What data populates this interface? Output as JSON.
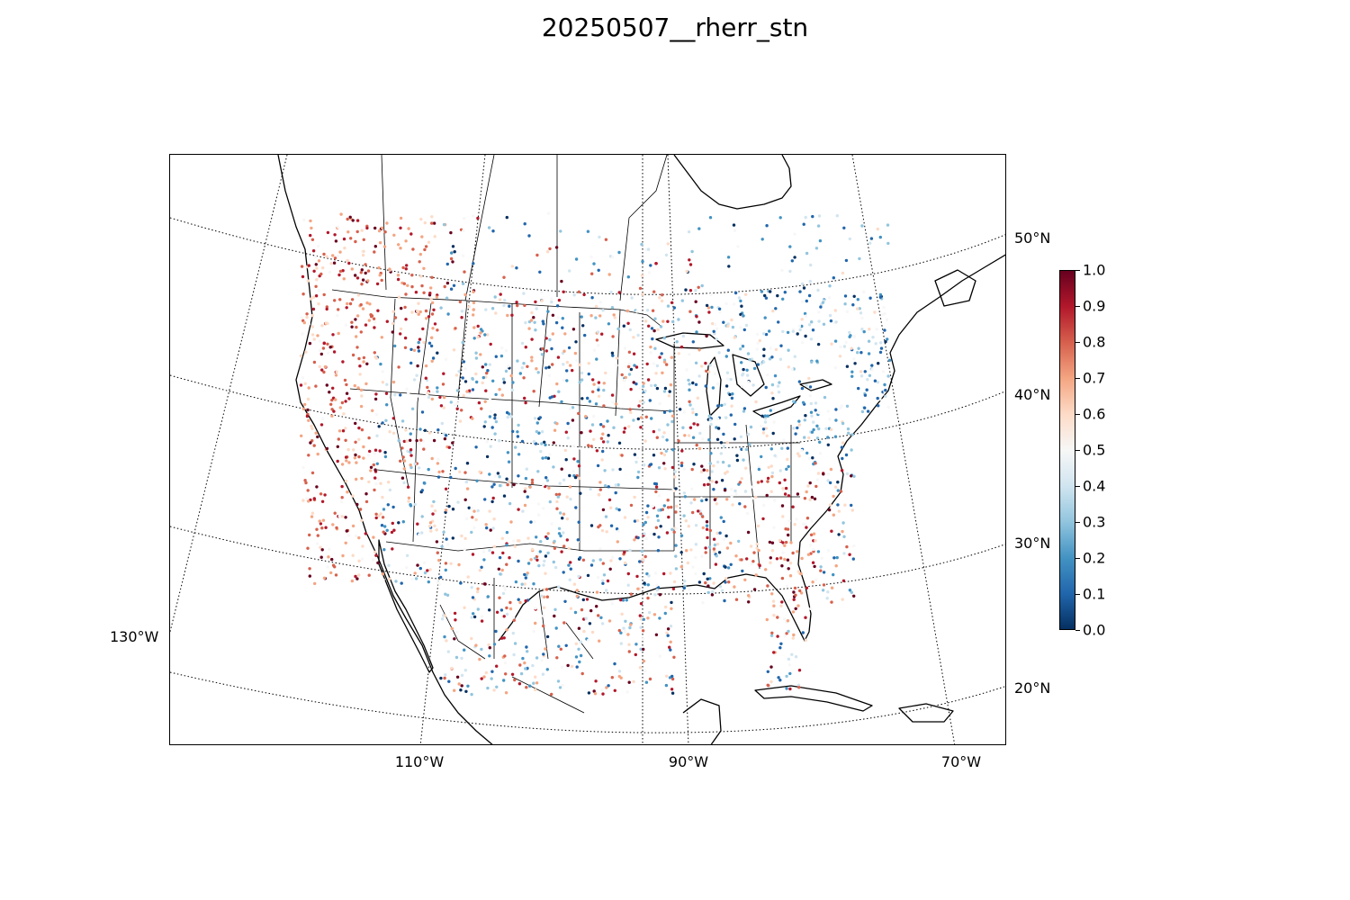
{
  "title": "20250507__rherr_stn",
  "map": {
    "projection": "lambert-conformal",
    "lat_labels": [
      "50°N",
      "40°N",
      "30°N",
      "20°N"
    ],
    "lon_labels": [
      "130°W",
      "110°W",
      "90°W",
      "70°W"
    ],
    "gridline_style": "dotted",
    "coastline_color": "#000000"
  },
  "colorbar": {
    "colormap": "RdBu_r",
    "range": [
      0.0,
      1.0
    ],
    "ticks": [
      "1.0",
      "0.9",
      "0.8",
      "0.7",
      "0.6",
      "0.5",
      "0.4",
      "0.3",
      "0.2",
      "0.1",
      "0.0"
    ],
    "colors": [
      "#053061",
      "#2166ac",
      "#4393c3",
      "#92c5de",
      "#d1e5f0",
      "#f7f7f7",
      "#fddbc7",
      "#f4a582",
      "#d6604d",
      "#b2182b",
      "#67001f"
    ]
  },
  "stations": {
    "description_of_layer": "",
    "marker": "station-dot"
  }
}
